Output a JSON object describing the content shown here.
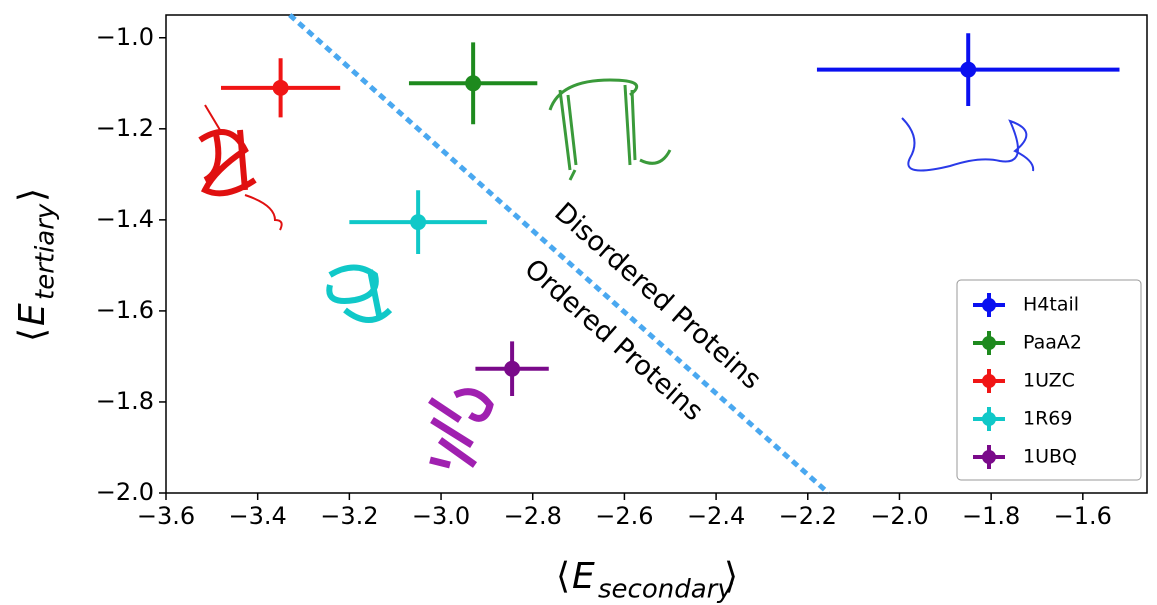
{
  "chart_data": {
    "type": "scatter",
    "xlabel": {
      "left": "⟨",
      "symbol": "E",
      "subscript": "secondary",
      "right": "⟩"
    },
    "ylabel": {
      "left": "⟨",
      "symbol": "E",
      "subscript": "tertiary",
      "right": "⟩"
    },
    "xlim": [
      -3.6,
      -1.46
    ],
    "ylim": [
      -2.0,
      -0.95
    ],
    "xticks": [
      {
        "value": -3.6,
        "label": "−3.6"
      },
      {
        "value": -3.4,
        "label": "−3.4"
      },
      {
        "value": -3.2,
        "label": "−3.2"
      },
      {
        "value": -3.0,
        "label": "−3.0"
      },
      {
        "value": -2.8,
        "label": "−2.8"
      },
      {
        "value": -2.6,
        "label": "−2.6"
      },
      {
        "value": -2.4,
        "label": "−2.4"
      },
      {
        "value": -2.2,
        "label": "−2.2"
      },
      {
        "value": -2.0,
        "label": "−2.0"
      },
      {
        "value": -1.8,
        "label": "−1.8"
      },
      {
        "value": -1.6,
        "label": "−1.6"
      }
    ],
    "yticks": [
      {
        "value": -1.0,
        "label": "−1.0"
      },
      {
        "value": -1.2,
        "label": "−1.2"
      },
      {
        "value": -1.4,
        "label": "−1.4"
      },
      {
        "value": -1.6,
        "label": "−1.6"
      },
      {
        "value": -1.8,
        "label": "−1.8"
      },
      {
        "value": -2.0,
        "label": "−2.0"
      }
    ],
    "series": [
      {
        "name": "H4tail",
        "color": "#0a10f0",
        "x": [
          -1.85
        ],
        "y": [
          -1.07
        ],
        "xerr": [
          0.33
        ],
        "yerr": [
          0.08
        ]
      },
      {
        "name": "PaaA2",
        "color": "#1e8a1e",
        "x": [
          -2.93
        ],
        "y": [
          -1.1
        ],
        "xerr": [
          0.14
        ],
        "yerr": [
          0.09
        ]
      },
      {
        "name": "1UZC",
        "color": "#f01515",
        "x": [
          -3.35
        ],
        "y": [
          -1.11
        ],
        "xerr": [
          0.13
        ],
        "yerr": [
          0.065
        ]
      },
      {
        "name": "1R69",
        "color": "#10c8c8",
        "x": [
          -3.05
        ],
        "y": [
          -1.405
        ],
        "xerr": [
          0.15
        ],
        "yerr": [
          0.07
        ]
      },
      {
        "name": "1UBQ",
        "color": "#7a0a8a",
        "x": [
          -2.845
        ],
        "y": [
          -1.727
        ],
        "xerr": [
          0.08
        ],
        "yerr": [
          0.06
        ]
      }
    ],
    "reference_line": {
      "x": [
        -3.33,
        -2.155
      ],
      "y": [
        -0.95,
        -2.0
      ],
      "color": "#4aa8f0"
    },
    "annotations": [
      "Disordered Proteins",
      "Ordered Proteins"
    ],
    "legend": "lower right"
  }
}
